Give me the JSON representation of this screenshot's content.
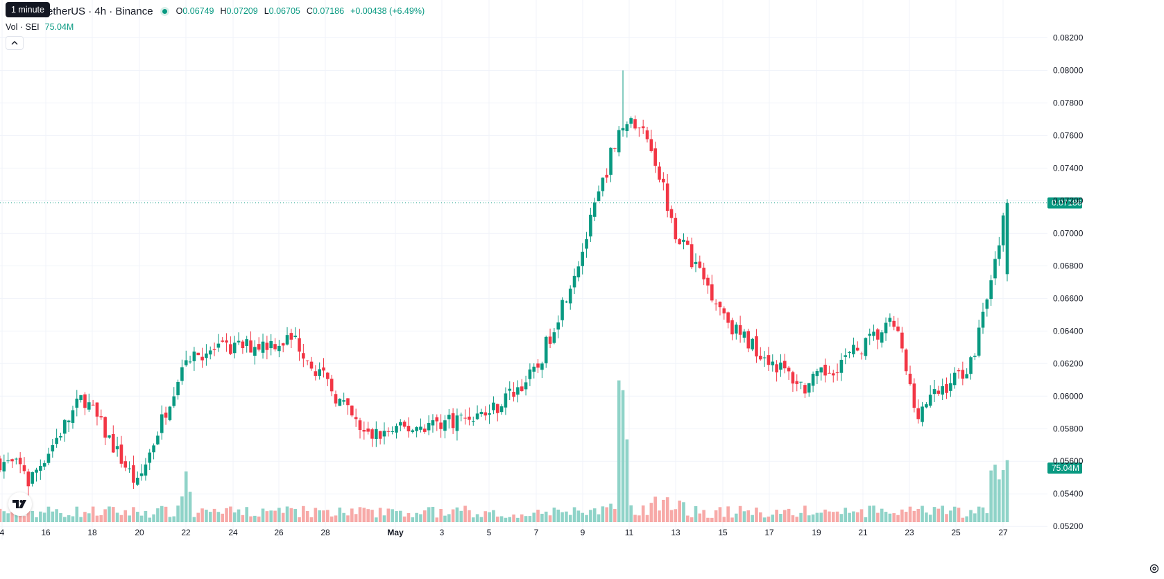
{
  "header": {
    "symbol": "etherUS · 4h · Binance",
    "ohlc": [
      {
        "k": "O",
        "v": "0.06749"
      },
      {
        "k": "H",
        "v": "0.07209"
      },
      {
        "k": "L",
        "v": "0.06705"
      },
      {
        "k": "C",
        "v": "0.07186"
      },
      {
        "k": "",
        "v": "+0.00438 (+6.49%)"
      }
    ],
    "tooltip": "1 minute"
  },
  "volume_legend": {
    "label": "Vol · SEI",
    "value": "75.04M"
  },
  "price_axis": {
    "ticks": [
      "0.05200",
      "0.05400",
      "0.05600",
      "0.05800",
      "0.06000",
      "0.06200",
      "0.06400",
      "0.06600",
      "0.06800",
      "0.07000",
      "0.07200",
      "0.07400",
      "0.07600",
      "0.07800",
      "0.08000",
      "0.08200"
    ],
    "last_price_label": "0.07186",
    "last_volume_label": "75.04M"
  },
  "time_axis": {
    "ticks": [
      "4",
      "16",
      "18",
      "20",
      "22",
      "24",
      "26",
      "28",
      "May",
      "3",
      "5",
      "7",
      "9",
      "11",
      "13",
      "15",
      "17",
      "19",
      "21",
      "23",
      "25",
      "27"
    ]
  },
  "colors": {
    "up": "#089981",
    "down": "#f23645",
    "vol_up": "#8fd3c8",
    "vol_down": "#f7a9a7",
    "grid": "#f0f3fa"
  },
  "icons": {
    "logo": "tradingview-logo-icon",
    "settings": "gear-icon",
    "collapse": "chevron-up-icon"
  },
  "chart_data": {
    "type": "candlestick",
    "interval": "4h",
    "y_range": [
      0.0512,
      0.083
    ],
    "last_price": 0.07186,
    "key_points": [
      {
        "date": "Apr 15",
        "close": 0.0545
      },
      {
        "date": "Apr 17",
        "close": 0.06
      },
      {
        "date": "Apr 20",
        "close": 0.0545
      },
      {
        "date": "Apr 22",
        "close": 0.0625
      },
      {
        "date": "Apr 26",
        "close": 0.0635
      },
      {
        "date": "Apr 30",
        "close": 0.0575
      },
      {
        "date": "May 5",
        "close": 0.059
      },
      {
        "date": "May 7",
        "close": 0.0615
      },
      {
        "date": "May 9",
        "close": 0.069
      },
      {
        "date": "May 10",
        "close": 0.077,
        "high": 0.08
      },
      {
        "date": "May 12",
        "close": 0.076
      },
      {
        "date": "May 13",
        "close": 0.07
      },
      {
        "date": "May 15",
        "close": 0.064
      },
      {
        "date": "May 18",
        "close": 0.0605
      },
      {
        "date": "May 22",
        "close": 0.0645
      },
      {
        "date": "May 23",
        "close": 0.059,
        "low": 0.0583
      },
      {
        "date": "May 26",
        "close": 0.062
      },
      {
        "date": "May 27",
        "close": 0.07186,
        "open": 0.06749,
        "high": 0.07209,
        "low": 0.06705
      }
    ],
    "volume_last": "75.04M"
  }
}
